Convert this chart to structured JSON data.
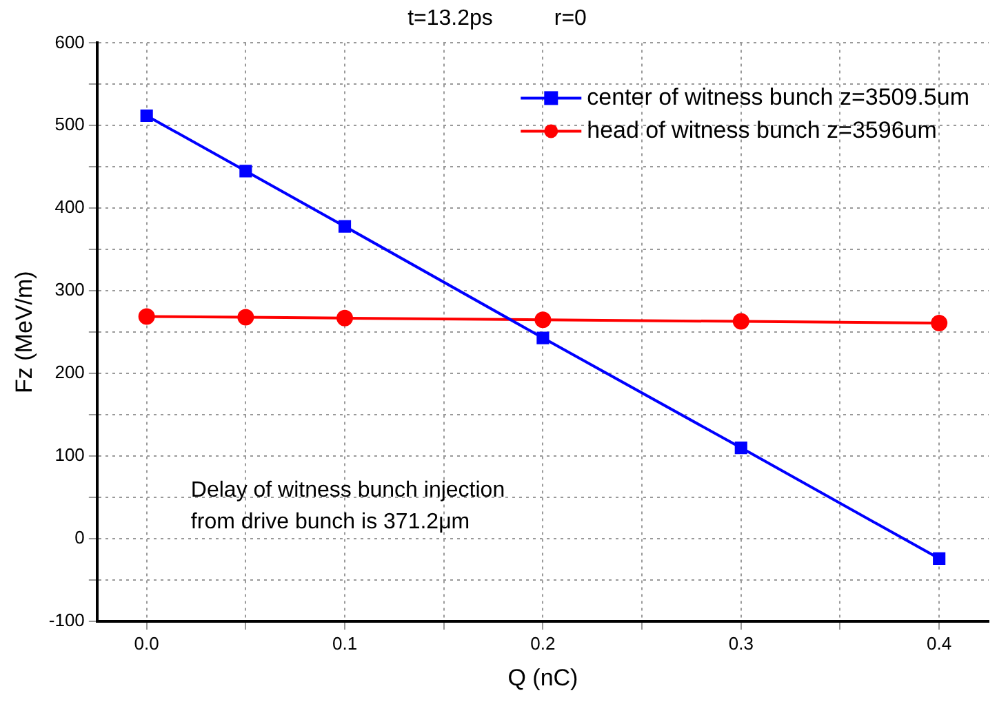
{
  "chart_data": {
    "type": "line",
    "title": "t=13.2ps          r=0",
    "xlabel": "Q (nC)",
    "ylabel": "Fz (MeV/m)",
    "x": [
      0,
      0.05,
      0.1,
      0.2,
      0.3,
      0.4
    ],
    "series": [
      {
        "name": "center of witness bunch z=3509.5um",
        "color": "#0000ff",
        "marker": "square",
        "values": [
          512,
          445,
          378,
          243,
          110,
          -24
        ]
      },
      {
        "name": "head of witness bunch z=3596um",
        "color": "#ff0000",
        "marker": "circle",
        "values": [
          269,
          268,
          267,
          265,
          263,
          261
        ]
      }
    ],
    "xlim": [
      -0.025,
      0.425
    ],
    "xticks": [
      {
        "value": 0,
        "label": "0.0"
      },
      {
        "value": 0.05,
        "label": null
      },
      0.1,
      {
        "value": 0.15,
        "label": null
      },
      0.2,
      {
        "value": 0.25,
        "label": null
      },
      0.3,
      {
        "value": 0.35,
        "label": null
      },
      0.4
    ],
    "ylim": [
      -100,
      600
    ],
    "yticks": [
      -100,
      {
        "value": -50,
        "label": null
      },
      0,
      {
        "value": 50,
        "label": null
      },
      100,
      {
        "value": 150,
        "label": null
      },
      200,
      {
        "value": 250,
        "label": null
      },
      300,
      {
        "value": 350,
        "label": null
      },
      400,
      {
        "value": 450,
        "label": null
      },
      500,
      {
        "value": 550,
        "label": null
      },
      600
    ],
    "annotations": [
      "Delay of witness bunch injection\nfrom drive bunch is 371.2μm"
    ],
    "grid": true,
    "legend": "top right",
    "line_style": "solid"
  }
}
